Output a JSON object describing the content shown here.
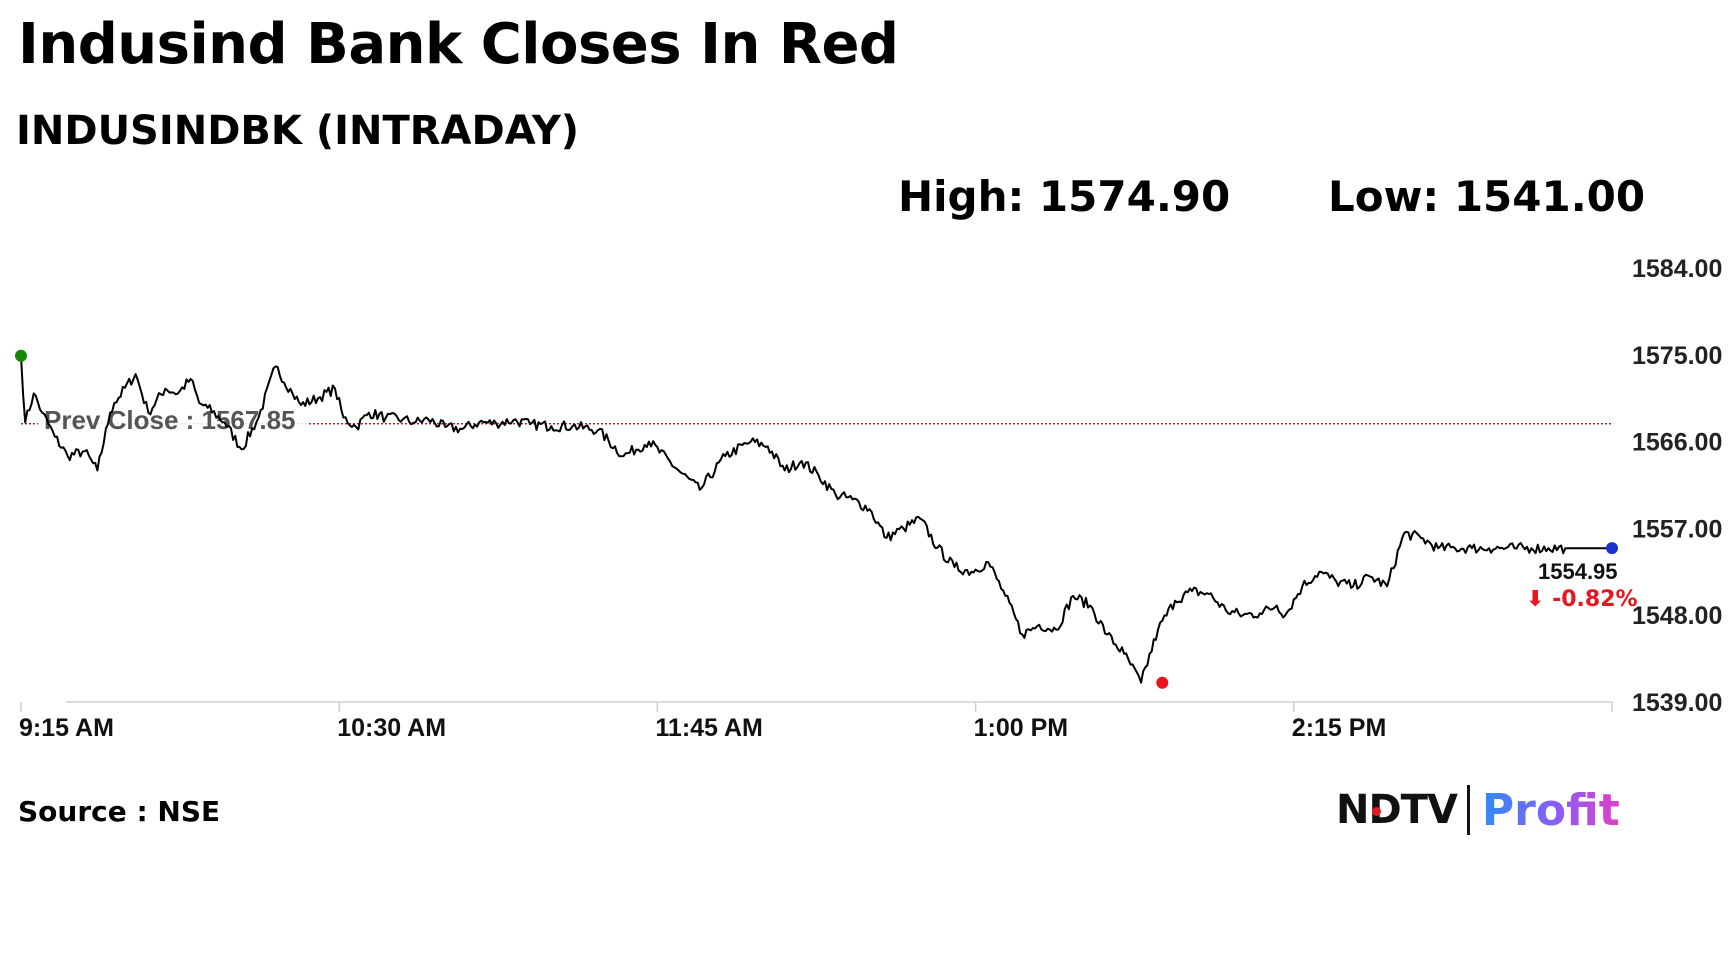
{
  "header": {
    "title": "Indusind Bank Closes In Red",
    "subtitle": "INDUSINDBK (INTRADAY)",
    "high_label": "High: 1574.90",
    "low_label": "Low: 1541.00"
  },
  "chart_data": {
    "type": "line",
    "title": "Indusind Bank Closes In Red",
    "subtitle": "INDUSINDBK (INTRADAY)",
    "xlabel": "",
    "ylabel": "",
    "x_tick_labels": [
      "9:15 AM",
      "10:30 AM",
      "11:45 AM",
      "1:00 PM",
      "2:15 PM"
    ],
    "y_tick_labels": [
      "1584.00",
      "1575.00",
      "1566.00",
      "1557.00",
      "1548.00",
      "1539.00"
    ],
    "ylim": [
      1539,
      1584
    ],
    "xlim_minutes_from_open": [
      0,
      375
    ],
    "grid": false,
    "high": 1574.9,
    "low": 1541.0,
    "prev_close": 1567.85,
    "prev_close_label": "Prev Close : 1567.85",
    "last_price": 1554.95,
    "last_price_label": "1554.95",
    "change_label": "⬇ -0.82%",
    "colors": {
      "line": "#000000",
      "start_marker": "#138808",
      "low_marker": "#e8141e",
      "end_marker": "#1a33cc",
      "prev_close": "#b00000",
      "change": "#e8141e"
    },
    "series": [
      {
        "x": [
          0,
          1,
          3,
          5,
          8,
          11,
          15,
          18,
          21,
          22,
          27,
          30,
          34,
          37,
          40,
          42,
          44,
          48,
          52,
          56,
          60,
          64,
          66,
          70,
          74,
          76,
          79,
          82,
          86,
          90,
          93,
          96,
          100,
          104,
          108,
          112,
          116,
          120,
          125,
          130,
          136,
          142,
          148,
          155,
          160,
          166,
          172,
          176,
          180,
          184,
          188,
          192,
          196,
          200,
          204,
          208,
          212,
          216,
          220,
          224,
          228,
          232,
          236,
          240,
          244,
          248,
          252,
          256,
          260,
          264,
          268,
          272,
          276,
          280,
          284,
          288,
          292,
          296,
          298,
          302,
          306,
          310,
          314,
          318,
          322,
          326,
          330,
          334,
          338,
          342,
          346,
          350,
          352,
          356,
          360,
          364,
          368,
          372,
          375
        ],
        "y": [
          1574.9,
          1568.0,
          1571.0,
          1569.0,
          1566.5,
          1564.5,
          1565.0,
          1563.0,
          1569.0,
          1570.0,
          1573.0,
          1569.0,
          1571.5,
          1571.0,
          1572.5,
          1570.0,
          1569.5,
          1568.0,
          1565.2,
          1568.5,
          1573.8,
          1571.0,
          1569.8,
          1570.5,
          1571.5,
          1568.5,
          1567.5,
          1569.0,
          1568.5,
          1568.3,
          1568.0,
          1568.3,
          1567.5,
          1567.3,
          1568.0,
          1567.9,
          1568.2,
          1567.8,
          1567.6,
          1567.6,
          1567.2,
          1564.5,
          1566.0,
          1563.0,
          1561.0,
          1564.5,
          1566.0,
          1565.5,
          1563.0,
          1564.0,
          1562.5,
          1560.5,
          1560.0,
          1559.0,
          1556.0,
          1557.0,
          1558.0,
          1555.0,
          1553.0,
          1552.5,
          1553.5,
          1550.0,
          1546.0,
          1547.0,
          1546.5,
          1550.0,
          1549.0,
          1546.0,
          1544.0,
          1541.0,
          1546.5,
          1549.5,
          1550.5,
          1550.2,
          1548.5,
          1548.0,
          1548.2,
          1549.0,
          1548.0,
          1551.0,
          1552.5,
          1551.5,
          1551.0,
          1552.0,
          1551.0,
          1556.5,
          1556.0,
          1554.95,
          1554.95,
          1554.95,
          1554.95,
          1554.95,
          1554.95,
          1554.95,
          1554.95,
          1554.95,
          1554.95,
          1554.95,
          1554.95
        ]
      }
    ]
  },
  "footer": {
    "source": "Source : NSE",
    "logo_ndtv": "NDTV",
    "logo_profit": "Profit"
  }
}
